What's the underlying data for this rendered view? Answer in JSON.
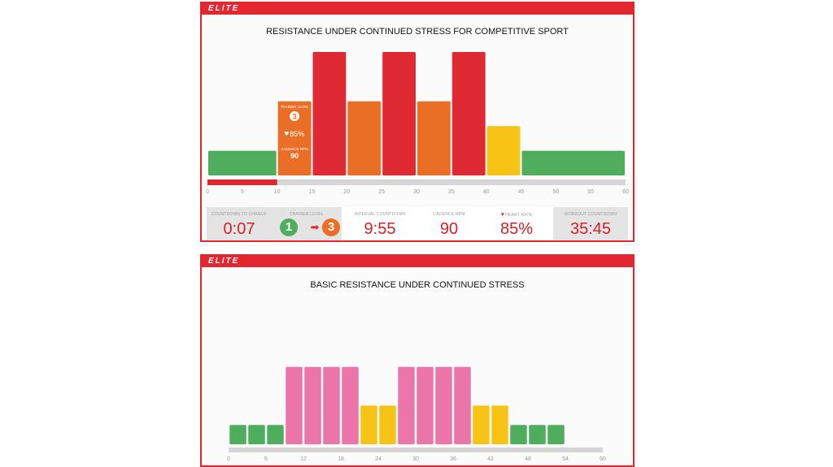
{
  "brand": "ELITE",
  "colors": {
    "frame": "#e3262f",
    "red": "#df2a33",
    "orange": "#ea6e26",
    "yellow": "#f7c315",
    "green": "#4fae5d",
    "pink": "#eb74a9",
    "progress": "#e3262f",
    "track": "#d6d6d6"
  },
  "chart_data": [
    {
      "type": "bar",
      "title": "RESISTANCE UNDER CONTINUED STRESS FOR COMPETITIVE SPORT",
      "xlabel": "",
      "ylabel": "",
      "xlim": [
        0,
        60
      ],
      "xticks": [
        0,
        5,
        10,
        15,
        20,
        25,
        30,
        35,
        40,
        45,
        50,
        55,
        60
      ],
      "ylim": [
        0,
        10
      ],
      "progress_minutes": 10,
      "bars": [
        {
          "start": 0,
          "end": 10,
          "level": 2,
          "color": "green"
        },
        {
          "start": 10,
          "end": 15,
          "level": 6,
          "color": "orange"
        },
        {
          "start": 15,
          "end": 20,
          "level": 10,
          "color": "red"
        },
        {
          "start": 20,
          "end": 25,
          "level": 6,
          "color": "orange"
        },
        {
          "start": 25,
          "end": 30,
          "level": 10,
          "color": "red"
        },
        {
          "start": 30,
          "end": 35,
          "level": 6,
          "color": "orange"
        },
        {
          "start": 35,
          "end": 40,
          "level": 10,
          "color": "red"
        },
        {
          "start": 40,
          "end": 45,
          "level": 4,
          "color": "yellow"
        },
        {
          "start": 45,
          "end": 60,
          "level": 2,
          "color": "green"
        }
      ],
      "tooltip": {
        "trainer_level_label": "TRAINER LEVEL",
        "trainer_level": "3",
        "heart_rate": "85%",
        "cadence_label": "CADENCE RPM",
        "cadence": "90"
      }
    },
    {
      "type": "bar",
      "title": "BASIC RESISTANCE UNDER CONTINUED STRESS",
      "xlabel": "",
      "ylabel": "",
      "xlim": [
        0,
        60
      ],
      "xticks": [
        0,
        6,
        12,
        18,
        24,
        30,
        36,
        42,
        48,
        54,
        60
      ],
      "ylim": [
        0,
        10
      ],
      "bars": [
        {
          "start": 0,
          "end": 3,
          "level": 2,
          "color": "green"
        },
        {
          "start": 3,
          "end": 6,
          "level": 2,
          "color": "green"
        },
        {
          "start": 6,
          "end": 9,
          "level": 2,
          "color": "green"
        },
        {
          "start": 9,
          "end": 12,
          "level": 8,
          "color": "pink"
        },
        {
          "start": 12,
          "end": 15,
          "level": 8,
          "color": "pink"
        },
        {
          "start": 15,
          "end": 18,
          "level": 8,
          "color": "pink"
        },
        {
          "start": 18,
          "end": 21,
          "level": 8,
          "color": "pink"
        },
        {
          "start": 21,
          "end": 24,
          "level": 4,
          "color": "yellow"
        },
        {
          "start": 24,
          "end": 27,
          "level": 4,
          "color": "yellow"
        },
        {
          "start": 27,
          "end": 30,
          "level": 8,
          "color": "pink"
        },
        {
          "start": 30,
          "end": 33,
          "level": 8,
          "color": "pink"
        },
        {
          "start": 33,
          "end": 36,
          "level": 8,
          "color": "pink"
        },
        {
          "start": 36,
          "end": 39,
          "level": 8,
          "color": "pink"
        },
        {
          "start": 39,
          "end": 42,
          "level": 4,
          "color": "yellow"
        },
        {
          "start": 42,
          "end": 45,
          "level": 4,
          "color": "yellow"
        },
        {
          "start": 45,
          "end": 48,
          "level": 2,
          "color": "green"
        },
        {
          "start": 48,
          "end": 51,
          "level": 2,
          "color": "green"
        },
        {
          "start": 51,
          "end": 54,
          "level": 2,
          "color": "green"
        }
      ]
    }
  ],
  "stats": {
    "countdown_to_change_label": "COUNTDOWN TO CHANGE",
    "countdown_to_change": "0:07",
    "trainer_level_label": "TRAINER LEVEL",
    "trainer_level_from": "1",
    "trainer_level_to": "3",
    "interval_countdown_label": "INTERVAL COUNTDOWN",
    "interval_countdown": "9:55",
    "cadence_label": "CADENCE RPM",
    "cadence": "90",
    "heart_rate_label": "HEART RATE",
    "heart_rate": "85%",
    "workout_countdown_label": "WORKOUT COUNTDOWN",
    "workout_countdown": "35:45"
  }
}
